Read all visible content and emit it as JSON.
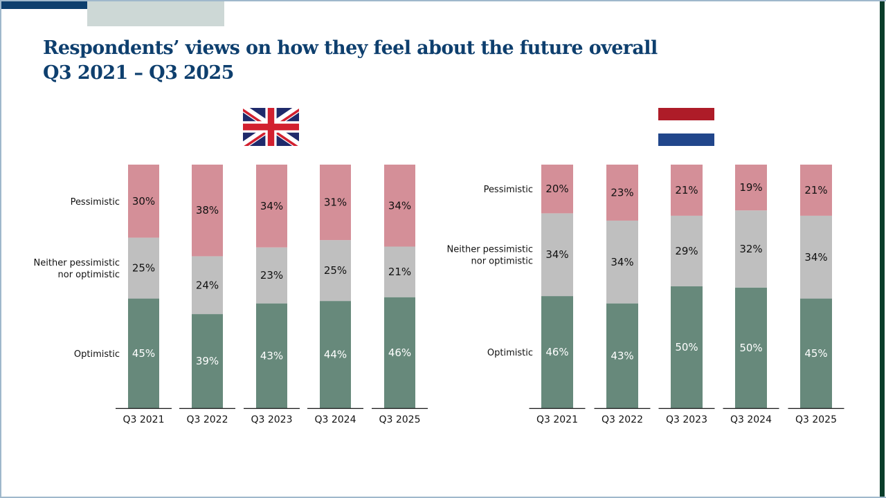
{
  "slide": {
    "title_line1": "Respondents’ views on how they feel about the future overall",
    "title_line2": "Q3 2021 – Q3 2025"
  },
  "colors": {
    "title": "#0e3f6e",
    "pessimistic": "#d48f98",
    "neither": "#bfbfbf",
    "optimistic": "#67897b",
    "label_dark": "#111111",
    "label_light": "#ffffff",
    "axis": "#111111"
  },
  "flags": [
    {
      "country": "United Kingdom",
      "icon": "uk-flag-icon"
    },
    {
      "country": "Netherlands",
      "icon": "netherlands-flag-icon"
    }
  ],
  "chart_data": [
    {
      "type": "bar",
      "stacked": true,
      "title": "United Kingdom",
      "categories": [
        "Q3 2021",
        "Q3 2022",
        "Q3 2023",
        "Q3 2024",
        "Q3 2025"
      ],
      "series": [
        {
          "name": "Optimistic",
          "values": [
            45,
            39,
            43,
            44,
            46
          ]
        },
        {
          "name": "Neither pessimistic nor optimistic",
          "values": [
            25,
            24,
            23,
            25,
            21
          ]
        },
        {
          "name": "Pessimistic",
          "values": [
            30,
            38,
            34,
            31,
            34
          ]
        }
      ],
      "row_labels": [
        "Pessimistic",
        "Neither pessimistic\nnor optimistic",
        "Optimistic"
      ],
      "value_suffix": "%",
      "ylim": [
        0,
        100
      ],
      "xlabel": "",
      "ylabel": "",
      "grid": false,
      "legend": "left-row-labels"
    },
    {
      "type": "bar",
      "stacked": true,
      "title": "Netherlands",
      "categories": [
        "Q3 2021",
        "Q3 2022",
        "Q3 2023",
        "Q3 2024",
        "Q3 2025"
      ],
      "series": [
        {
          "name": "Optimistic",
          "values": [
            46,
            43,
            50,
            50,
            45
          ]
        },
        {
          "name": "Neither pessimistic nor optimistic",
          "values": [
            34,
            34,
            29,
            32,
            34
          ]
        },
        {
          "name": "Pessimistic",
          "values": [
            20,
            23,
            21,
            19,
            21
          ]
        }
      ],
      "row_labels": [
        "Pessimistic",
        "Neither pessimistic\nnor optimistic",
        "Optimistic"
      ],
      "value_suffix": "%",
      "ylim": [
        0,
        100
      ],
      "xlabel": "",
      "ylabel": "",
      "grid": false,
      "legend": "left-row-labels"
    }
  ]
}
